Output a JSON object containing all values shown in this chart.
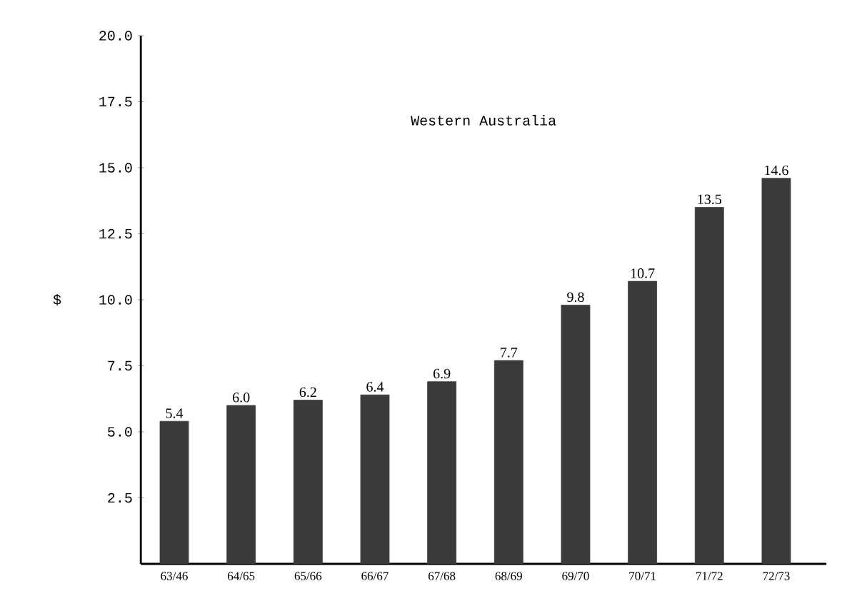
{
  "chart_data": {
    "type": "bar",
    "title": "Western Australia",
    "ylabel": "$",
    "categories": [
      "63/46",
      "64/65",
      "65/66",
      "66/67",
      "67/68",
      "68/69",
      "69/70",
      "70/71",
      "71/72",
      "72/73"
    ],
    "values": [
      5.4,
      6.0,
      6.2,
      6.4,
      6.9,
      7.7,
      9.8,
      10.7,
      13.5,
      14.6
    ],
    "value_labels": [
      "5.4",
      "6.0",
      "6.2",
      "6.4",
      "6.9",
      "7.7",
      "9.8",
      "10.7",
      "13.5",
      "14.6"
    ],
    "color": "#3a3a3a",
    "ylim": [
      0,
      20
    ],
    "yticks": [
      {
        "value": 2.5,
        "label": "2.5"
      },
      {
        "value": 5,
        "label": "5.0"
      },
      {
        "value": 7.5,
        "label": "7.5"
      },
      {
        "value": 10,
        "label": "10.0"
      },
      {
        "value": 12.5,
        "label": "12.5"
      },
      {
        "value": 15,
        "label": "15.0"
      },
      {
        "value": 17.5,
        "label": "17.5"
      },
      {
        "value": 20,
        "label": "20.0"
      }
    ],
    "grid": false,
    "legend": false
  }
}
